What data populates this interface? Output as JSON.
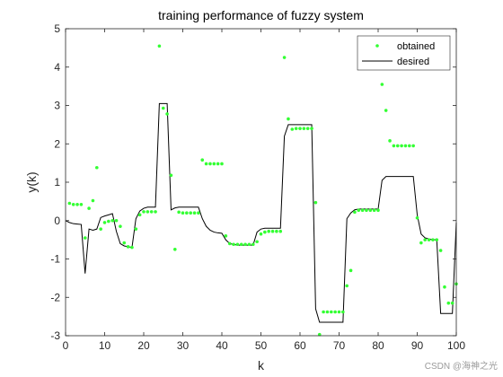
{
  "watermark": "CSDN @海神之光",
  "chart_data": {
    "type": "line",
    "title": "training performance of fuzzy system",
    "xlabel": "k",
    "ylabel": "y(k)",
    "xlim": [
      0,
      100
    ],
    "ylim": [
      -3,
      5
    ],
    "xticks": [
      0,
      10,
      20,
      30,
      40,
      50,
      60,
      70,
      80,
      90,
      100
    ],
    "yticks": [
      -3,
      -2,
      -1,
      0,
      1,
      2,
      3,
      4,
      5
    ],
    "grid": false,
    "legend_position": "top-right",
    "series": [
      {
        "name": "obtained",
        "style": "markers",
        "color": "#33ff33",
        "x": [
          1,
          2,
          3,
          4,
          5,
          6,
          7,
          8,
          9,
          10,
          11,
          12,
          13,
          14,
          15,
          16,
          17,
          18,
          19,
          20,
          21,
          22,
          23,
          24,
          25,
          26,
          27,
          28,
          29,
          30,
          31,
          32,
          33,
          34,
          35,
          36,
          37,
          38,
          39,
          40,
          41,
          42,
          43,
          44,
          45,
          46,
          47,
          48,
          49,
          50,
          51,
          52,
          53,
          54,
          55,
          56,
          57,
          58,
          59,
          60,
          61,
          62,
          63,
          64,
          65,
          66,
          67,
          68,
          69,
          70,
          71,
          72,
          73,
          74,
          75,
          76,
          77,
          78,
          79,
          80,
          81,
          82,
          83,
          84,
          85,
          86,
          87,
          88,
          89,
          90,
          91,
          92,
          93,
          94,
          95,
          96,
          97,
          98,
          99,
          100
        ],
        "y": [
          0.45,
          0.42,
          0.42,
          0.42,
          -0.45,
          0.32,
          0.52,
          1.38,
          -0.22,
          -0.05,
          -0.02,
          0.0,
          0.0,
          -0.15,
          -0.58,
          -0.68,
          -0.7,
          -0.22,
          0.15,
          0.23,
          0.23,
          0.23,
          0.23,
          4.55,
          2.93,
          2.78,
          1.18,
          -0.75,
          0.22,
          0.2,
          0.2,
          0.2,
          0.2,
          0.2,
          1.58,
          1.48,
          1.48,
          1.48,
          1.48,
          1.48,
          -0.4,
          -0.6,
          -0.62,
          -0.62,
          -0.62,
          -0.62,
          -0.62,
          -0.62,
          -0.55,
          -0.35,
          -0.3,
          -0.28,
          -0.28,
          -0.28,
          -0.28,
          4.25,
          2.65,
          2.38,
          2.4,
          2.4,
          2.4,
          2.4,
          2.4,
          0.47,
          -2.97,
          -2.38,
          -2.38,
          -2.38,
          -2.38,
          -2.38,
          -2.38,
          -1.7,
          -1.3,
          0.22,
          0.27,
          0.27,
          0.27,
          0.27,
          0.27,
          0.27,
          3.55,
          2.87,
          2.08,
          1.95,
          1.95,
          1.95,
          1.95,
          1.95,
          1.95,
          0.07,
          -0.58,
          -0.5,
          -0.5,
          -0.5,
          -0.5,
          -0.78,
          -1.73,
          -2.15,
          -2.15,
          -1.65
        ]
      },
      {
        "name": "desired",
        "style": "line",
        "color": "#000000",
        "x": [
          0,
          1,
          2,
          3,
          4,
          5,
          6,
          7,
          8,
          9,
          10,
          11,
          12,
          13,
          14,
          15,
          16,
          17,
          18,
          19,
          20,
          21,
          22,
          23,
          24,
          25,
          26,
          27,
          28,
          29,
          30,
          31,
          32,
          33,
          34,
          35,
          36,
          37,
          38,
          39,
          40,
          41,
          42,
          43,
          44,
          45,
          46,
          47,
          48,
          49,
          50,
          51,
          52,
          53,
          54,
          55,
          56,
          57,
          58,
          59,
          60,
          61,
          62,
          63,
          64,
          65,
          66,
          67,
          68,
          69,
          70,
          71,
          72,
          73,
          74,
          75,
          76,
          77,
          78,
          79,
          80,
          81,
          82,
          83,
          84,
          85,
          86,
          87,
          88,
          89,
          90,
          91,
          92,
          93,
          94,
          95,
          96,
          97,
          98,
          99,
          100
        ],
        "y": [
          0.0,
          -0.05,
          -0.08,
          -0.09,
          -0.1,
          -1.38,
          -0.22,
          -0.25,
          -0.22,
          0.08,
          0.12,
          0.15,
          0.18,
          -0.28,
          -0.6,
          -0.66,
          -0.68,
          -0.7,
          0.05,
          0.25,
          0.32,
          0.35,
          0.35,
          0.35,
          3.05,
          3.05,
          3.05,
          0.28,
          0.33,
          0.35,
          0.35,
          0.35,
          0.35,
          0.35,
          0.35,
          0.05,
          -0.15,
          -0.25,
          -0.3,
          -0.32,
          -0.33,
          -0.5,
          -0.6,
          -0.62,
          -0.64,
          -0.64,
          -0.64,
          -0.64,
          -0.64,
          -0.3,
          -0.22,
          -0.2,
          -0.2,
          -0.2,
          -0.2,
          -0.2,
          2.2,
          2.5,
          2.5,
          2.5,
          2.5,
          2.5,
          2.5,
          2.5,
          -2.3,
          -2.65,
          -2.65,
          -2.65,
          -2.65,
          -2.65,
          -2.65,
          -2.65,
          0.05,
          0.2,
          0.28,
          0.3,
          0.3,
          0.3,
          0.3,
          0.3,
          0.3,
          1.05,
          1.15,
          1.15,
          1.15,
          1.15,
          1.15,
          1.15,
          1.15,
          1.15,
          0.15,
          -0.35,
          -0.45,
          -0.48,
          -0.5,
          -0.5,
          -2.42,
          -2.42,
          -2.42,
          -2.42,
          -0.05
        ]
      }
    ]
  }
}
